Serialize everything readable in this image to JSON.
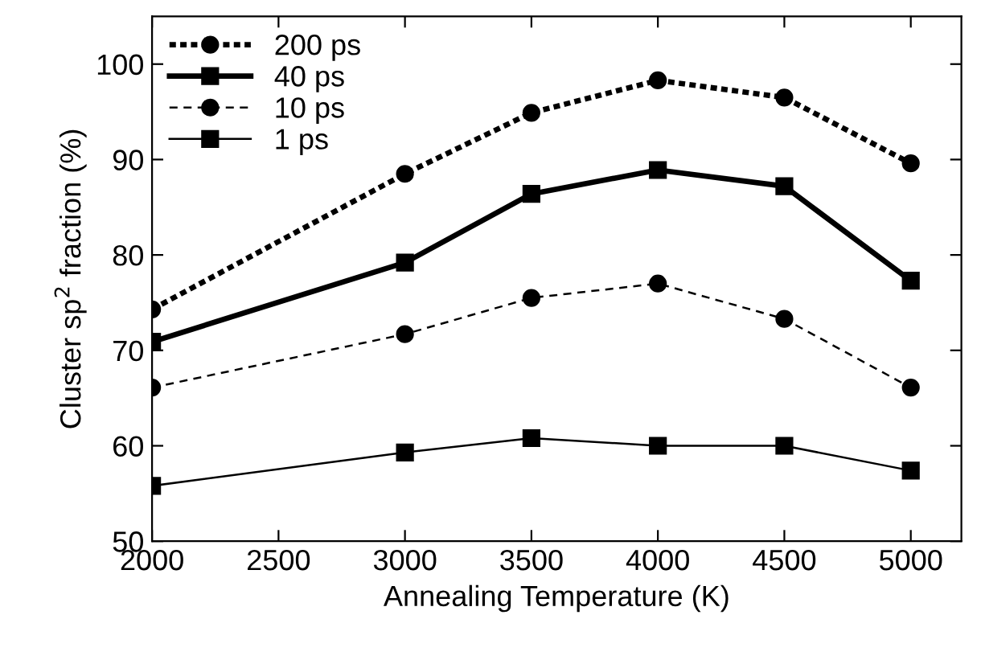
{
  "chart_data": {
    "type": "line",
    "xlabel": "Annealing Temperature (K)",
    "ylabel": "Cluster sp$^{2}$ fraction (%)",
    "x": [
      2000,
      3000,
      3500,
      4000,
      4500,
      5000
    ],
    "xlim": [
      2000,
      5200
    ],
    "xticks": [
      2000,
      2500,
      3000,
      3500,
      4000,
      4500,
      5000
    ],
    "ylim": [
      50,
      105
    ],
    "yticks": [
      50,
      60,
      70,
      80,
      90,
      100
    ],
    "grid": false,
    "legend": "top left",
    "series": [
      {
        "name": "200 ps",
        "color": "#000000",
        "marker": "circle",
        "line_style": "dotted",
        "values": [
          74.3,
          88.5,
          94.9,
          98.3,
          96.5,
          89.6
        ]
      },
      {
        "name": "40 ps",
        "color": "#000000",
        "marker": "square",
        "line_style": "solid",
        "values": [
          70.9,
          79.2,
          86.4,
          88.9,
          87.2,
          77.3
        ]
      },
      {
        "name": "10 ps",
        "color": "#000000",
        "marker": "circle",
        "line_style": "dashed",
        "values": [
          66.1,
          71.7,
          75.5,
          77.0,
          73.3,
          66.1
        ]
      },
      {
        "name": "1 ps",
        "color": "#000000",
        "marker": "square",
        "line_style": "solid",
        "values": [
          55.8,
          59.3,
          60.8,
          60.0,
          60.0,
          57.4
        ]
      }
    ]
  }
}
